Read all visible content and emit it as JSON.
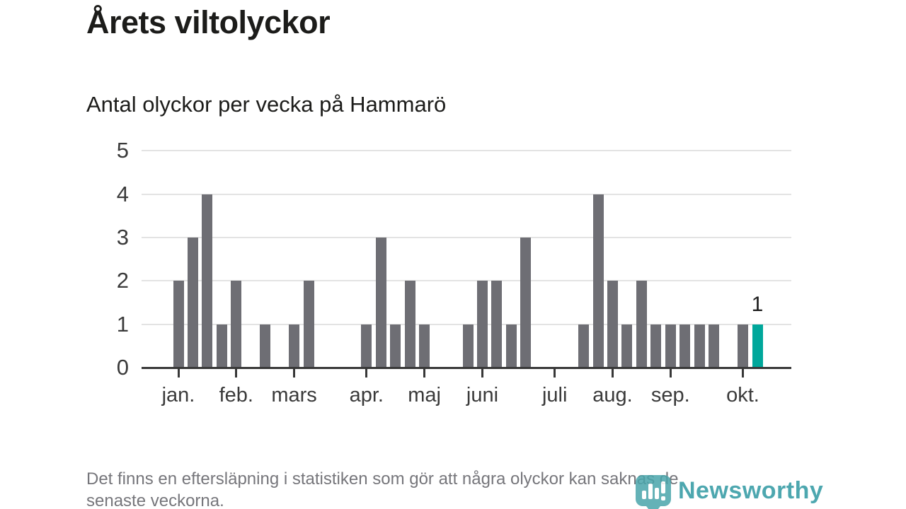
{
  "title": "Årets viltolyckor",
  "subtitle": "Antal olyckor per vecka på Hammarö",
  "footer": {
    "line1": "Det finns en eftersläpning i statistiken som gör att några olyckor kan saknas de",
    "line2": "senaste veckorna."
  },
  "logo": {
    "text": "Newsworthy"
  },
  "colors": {
    "bar": "#6e6e74",
    "highlight": "#00a79b",
    "grid": "#e3e3e3",
    "axis": "#383838",
    "tick_label": "#3a3a3a",
    "footer_text": "#76767b",
    "logo_teal": "#2e98a2",
    "logo_icon": "#49a5ab"
  },
  "chart_data": {
    "type": "bar",
    "title": "Årets viltolyckor",
    "subtitle": "Antal olyckor per vecka på Hammarö",
    "xlabel": "",
    "ylabel": "",
    "x_unit": "vecka",
    "first_week": 1,
    "values": [
      2,
      3,
      4,
      1,
      2,
      0,
      1,
      0,
      1,
      2,
      0,
      0,
      0,
      1,
      3,
      1,
      2,
      1,
      0,
      0,
      1,
      2,
      2,
      1,
      3,
      0,
      0,
      0,
      1,
      4,
      2,
      1,
      2,
      1,
      1,
      1,
      1,
      1,
      0,
      1,
      1
    ],
    "highlight_last": true,
    "last_value_label": "1",
    "month_ticks": [
      {
        "label": "jan.",
        "week": 1
      },
      {
        "label": "feb.",
        "week": 5
      },
      {
        "label": "mars",
        "week": 9
      },
      {
        "label": "apr.",
        "week": 14
      },
      {
        "label": "maj",
        "week": 18
      },
      {
        "label": "juni",
        "week": 22
      },
      {
        "label": "juli",
        "week": 27
      },
      {
        "label": "aug.",
        "week": 31
      },
      {
        "label": "sep.",
        "week": 35
      },
      {
        "label": "okt.",
        "week": 40
      }
    ],
    "ylim": [
      0,
      5
    ],
    "yticks": [
      0,
      1,
      2,
      3,
      4,
      5
    ],
    "grid": "horizontal",
    "legend": "none"
  }
}
